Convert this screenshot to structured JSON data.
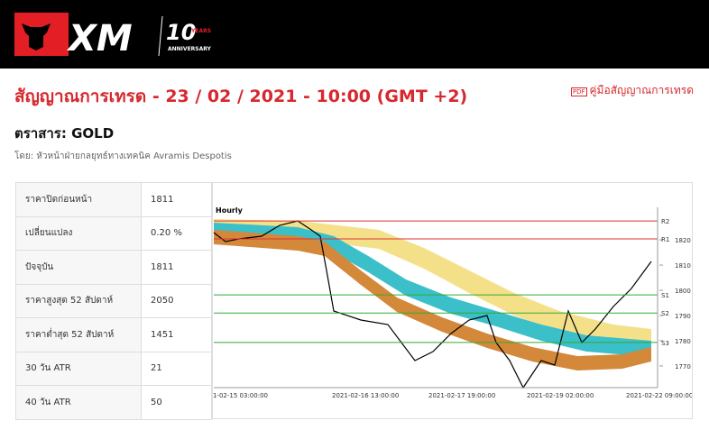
{
  "header": {
    "logo": {
      "brand": "XM",
      "anniversary_number": "10",
      "years": "YEARS",
      "anniversary": "ANNIVERSARY"
    }
  },
  "page": {
    "title": "สัญญาณการเทรด - 23 / 02 / 2021 - 10:00 (GMT +2)",
    "guide_link": "คู่มือสัญญาณการเทรด",
    "instrument": "ตราสาร: GOLD",
    "author": "โดย: หัวหน้าฝ่ายกลยุทธ์ทางเทคนิค Avramis Despotis"
  },
  "table": {
    "rows": [
      [
        "ราคาปิดก่อนหน้า",
        "1811"
      ],
      [
        "เปลี่ยนแปลง",
        "0.20 %"
      ],
      [
        "ปัจจุบัน",
        "1811"
      ],
      [
        "ราคาสูงสุด 52 สัปดาห์",
        "2050"
      ],
      [
        "ราคาต่ำสุด 52 สัปดาห์",
        "1451"
      ],
      [
        "30 วัน ATR",
        "21"
      ],
      [
        "40 วัน ATR",
        "50"
      ]
    ]
  },
  "chart": {
    "timeframe": "Hourly",
    "ylim": [
      1761.4,
      1832.9
    ],
    "yticks": [
      1820,
      1810,
      1800,
      1790,
      1780,
      1770
    ],
    "levels": [
      {
        "label": "R2",
        "value": 1827.5
      },
      {
        "label": "R1",
        "value": 1820.4
      },
      {
        "label": "S1",
        "value": 1798.2
      },
      {
        "label": "S2",
        "value": 1791
      },
      {
        "label": "S3",
        "value": 1779.3
      }
    ],
    "x_labels": [
      "1-02-15 03:00:00",
      "2021-02-16 13:00:00",
      "2021-02-17 19:00:00",
      "2021-02-19 02:00:00",
      "2021-02-22 09:00:00"
    ]
  }
}
